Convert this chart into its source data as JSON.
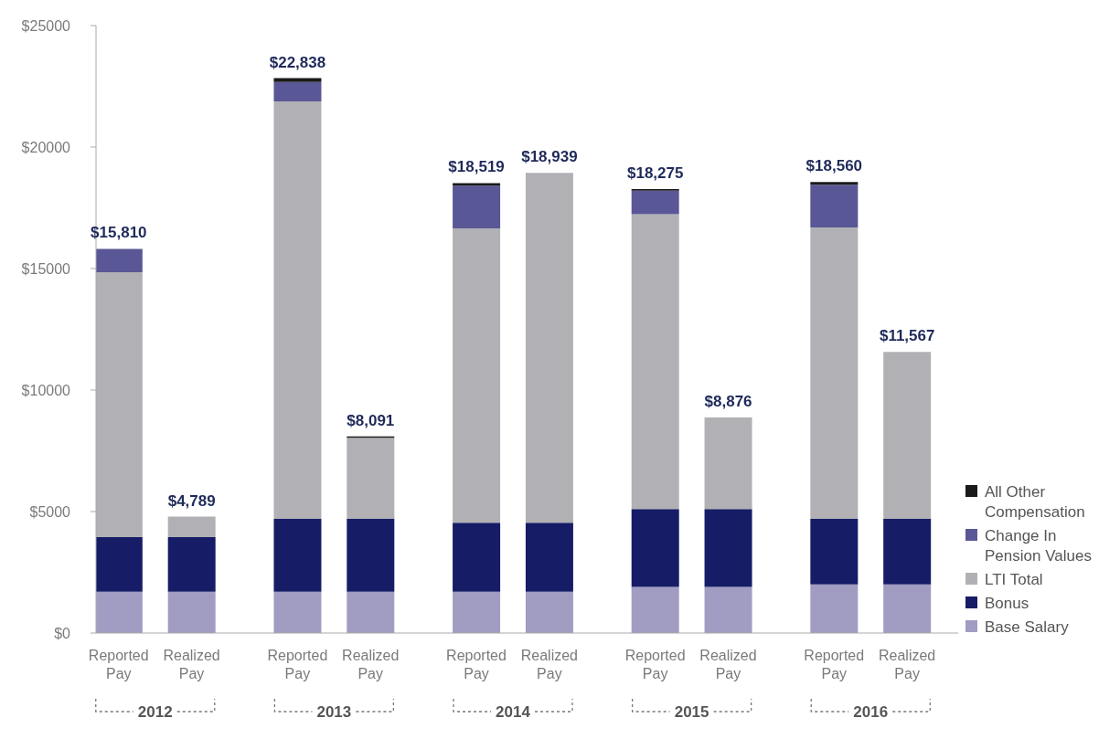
{
  "chart_data": {
    "type": "bar",
    "stacked": true,
    "categories": [
      "Reported Pay",
      "Realized Pay",
      "Reported Pay",
      "Realized Pay",
      "Reported Pay",
      "Realized Pay",
      "Reported Pay",
      "Realized Pay",
      "Reported Pay",
      "Realized Pay"
    ],
    "series": [
      {
        "name": "Base Salary",
        "color": "#a09cc2",
        "values": [
          1700,
          1700,
          1700,
          1700,
          1700,
          1700,
          1900,
          1900,
          2000,
          2000
        ]
      },
      {
        "name": "Bonus",
        "color": "#161d66",
        "values": [
          2250,
          2250,
          3000,
          3000,
          2840,
          2840,
          3200,
          3200,
          2700,
          2700
        ]
      },
      {
        "name": "LTI Total",
        "color": "#b1b1b5",
        "values": [
          10900,
          839,
          17180,
          3340,
          12110,
          14399,
          12135,
          3776,
          11990,
          6867
        ]
      },
      {
        "name": "Change In Pension Values",
        "color": "#5a5796",
        "values": [
          960,
          null,
          800,
          null,
          1760,
          null,
          970,
          null,
          1760,
          null
        ]
      },
      {
        "name": "All Other Compensation",
        "color": "#1a1a1a",
        "values": [
          null,
          null,
          158,
          51,
          109,
          null,
          70,
          null,
          110,
          null
        ]
      }
    ],
    "totals": [
      "$15,810",
      "$4,789",
      "$22,838",
      "$8,091",
      "$18,519",
      "$18,939",
      "$18,275",
      "$8,876",
      "$18,560",
      "$11,567"
    ],
    "annotations": [
      "2012",
      "2013",
      "2014",
      "2015",
      "2016"
    ],
    "ylim": [
      0,
      25000
    ],
    "yticks": [
      {
        "value": 0,
        "label": "$0"
      },
      {
        "value": 5000,
        "label": "$5000"
      },
      {
        "value": 10000,
        "label": "$10000"
      },
      {
        "value": 15000,
        "label": "$15000"
      },
      {
        "value": 20000,
        "label": "$20000"
      },
      {
        "value": 25000,
        "label": "$25000"
      }
    ],
    "grid": false,
    "legend": "right"
  }
}
